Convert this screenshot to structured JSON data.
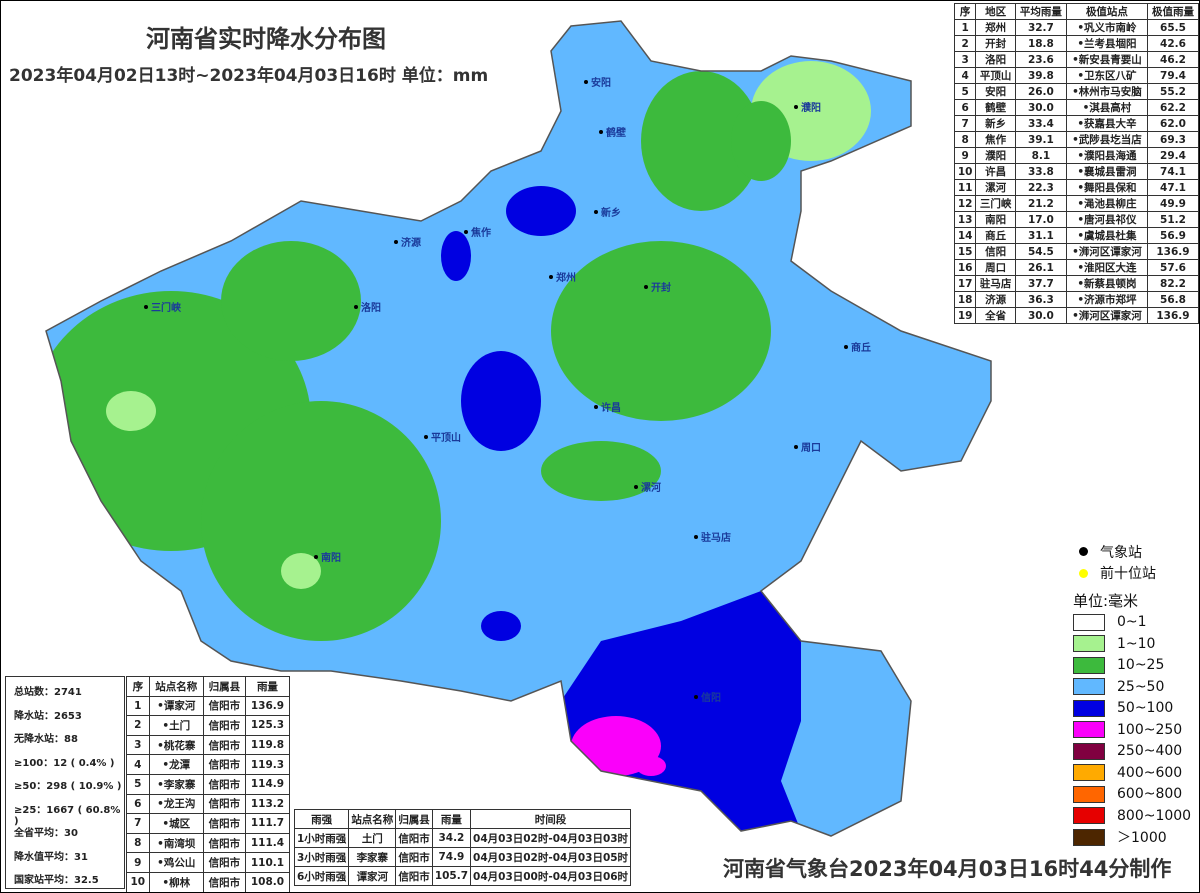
{
  "header": {
    "title": "河南省实时降水分布图",
    "subtitle": "2023年04月02日13时~2023年04月03日16时 单位：mm"
  },
  "region_table": {
    "columns": [
      "序",
      "地区",
      "平均雨量",
      "极值站点",
      "极值雨量"
    ],
    "rows": [
      [
        "1",
        "郑州",
        "32.7",
        "•巩义市南岭",
        "65.5"
      ],
      [
        "2",
        "开封",
        "18.8",
        "•兰考县堌阳",
        "42.6"
      ],
      [
        "3",
        "洛阳",
        "23.6",
        "•新安县青要山",
        "46.2"
      ],
      [
        "4",
        "平顶山",
        "39.8",
        "•卫东区八矿",
        "79.4"
      ],
      [
        "5",
        "安阳",
        "26.0",
        "•林州市马安脑",
        "55.2"
      ],
      [
        "6",
        "鹤壁",
        "30.0",
        "•淇县高村",
        "62.2"
      ],
      [
        "7",
        "新乡",
        "33.4",
        "•获嘉县大辛",
        "62.0"
      ],
      [
        "8",
        "焦作",
        "39.1",
        "•武陟县圪当店",
        "69.3"
      ],
      [
        "9",
        "濮阳",
        "8.1",
        "•濮阳县海通",
        "29.4"
      ],
      [
        "10",
        "许昌",
        "33.8",
        "•襄城县雷洞",
        "74.1"
      ],
      [
        "11",
        "漯河",
        "22.3",
        "•舞阳县保和",
        "47.1"
      ],
      [
        "12",
        "三门峡",
        "21.2",
        "•渑池县柳庄",
        "49.9"
      ],
      [
        "13",
        "南阳",
        "17.0",
        "•唐河县祁仪",
        "51.2"
      ],
      [
        "14",
        "商丘",
        "31.1",
        "•虞城县杜集",
        "56.9"
      ],
      [
        "15",
        "信阳",
        "54.5",
        "•浉河区谭家河",
        "136.9"
      ],
      [
        "16",
        "周口",
        "26.1",
        "•淮阳区大连",
        "57.6"
      ],
      [
        "17",
        "驻马店",
        "37.7",
        "•新蔡县顿岗",
        "82.2"
      ],
      [
        "18",
        "济源",
        "36.3",
        "•济源市郑坪",
        "56.8"
      ],
      [
        "19",
        "全省",
        "30.0",
        "•浉河区谭家河",
        "136.9"
      ]
    ]
  },
  "stats": [
    "总站数：2741",
    "降水站：2653",
    "无降水站：88",
    "≥100：12 ( 0.4% )",
    "≥50：298 ( 10.9% )",
    "≥25：1667 ( 60.8% )",
    "全省平均：30",
    "降水值平均：31",
    "国家站平均：32.5"
  ],
  "top10_table": {
    "columns": [
      "序",
      "站点名称",
      "归属县",
      "雨量"
    ],
    "rows": [
      [
        "1",
        "•谭家河",
        "信阳市",
        "136.9"
      ],
      [
        "2",
        "•土门",
        "信阳市",
        "125.3"
      ],
      [
        "3",
        "•桃花寨",
        "信阳市",
        "119.8"
      ],
      [
        "4",
        "•龙潭",
        "信阳市",
        "119.3"
      ],
      [
        "5",
        "•李家寨",
        "信阳市",
        "114.9"
      ],
      [
        "6",
        "•龙王沟",
        "信阳市",
        "113.2"
      ],
      [
        "7",
        "•城区",
        "信阳市",
        "111.7"
      ],
      [
        "8",
        "•南湾坝",
        "信阳市",
        "111.4"
      ],
      [
        "9",
        "•鸡公山",
        "信阳市",
        "110.1"
      ],
      [
        "10",
        "•柳林",
        "信阳市",
        "108.0"
      ]
    ]
  },
  "intensity_table": {
    "columns": [
      "雨强",
      "站点名称",
      "归属县",
      "雨量",
      "时间段"
    ],
    "rows": [
      [
        "1小时雨强",
        "土门",
        "信阳市",
        "34.2",
        "04月03日02时-04月03日03时"
      ],
      [
        "3小时雨强",
        "李家寨",
        "信阳市",
        "74.9",
        "04月03日02时-04月03日05时"
      ],
      [
        "6小时雨强",
        "谭家河",
        "信阳市",
        "105.7",
        "04月03日00时-04月03日06时"
      ]
    ]
  },
  "legend": {
    "station_types": [
      {
        "label": "气象站",
        "color": "#000000"
      },
      {
        "label": "前十位站",
        "color": "#ffff00"
      }
    ],
    "unit": "单位:毫米",
    "classes": [
      {
        "label": "0~1",
        "color": "#ffffff"
      },
      {
        "label": "1~10",
        "color": "#a6f28f"
      },
      {
        "label": "10~25",
        "color": "#3dba3d"
      },
      {
        "label": "25~50",
        "color": "#61b8ff"
      },
      {
        "label": "50~100",
        "color": "#0000e1"
      },
      {
        "label": "100~250",
        "color": "#fa00fa"
      },
      {
        "label": "250~400",
        "color": "#800040"
      },
      {
        "label": "400~600",
        "color": "#ffaa00"
      },
      {
        "label": "600~800",
        "color": "#ff6600"
      },
      {
        "label": "800~1000",
        "color": "#e60000"
      },
      {
        "label": "＞1000",
        "color": "#4d2600"
      }
    ]
  },
  "map_labels": [
    "安阳",
    "鹤壁",
    "濮阳",
    "新乡",
    "焦作",
    "济源",
    "郑州",
    "开封",
    "洛阳",
    "三门峡",
    "平顶山",
    "许昌",
    "漯河",
    "商丘",
    "周口",
    "南阳",
    "驻马店",
    "信阳"
  ],
  "footer": "河南省气象台2023年04月03日16时44分制作"
}
